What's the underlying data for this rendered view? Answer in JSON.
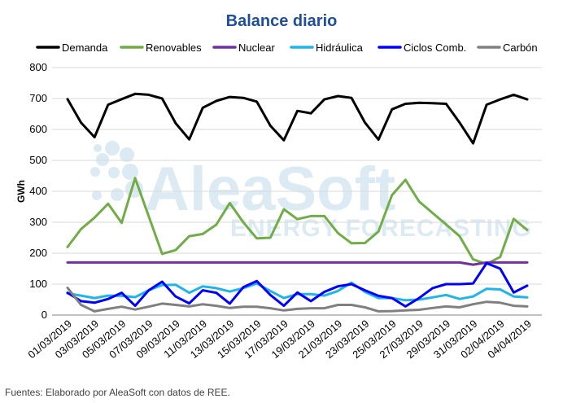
{
  "chart_data": {
    "type": "line",
    "title": "Balance diario",
    "ylabel": "GWh",
    "xlabel": "",
    "ylim": [
      0,
      800
    ],
    "yticks": [
      0,
      100,
      200,
      300,
      400,
      500,
      600,
      700,
      800
    ],
    "grid": true,
    "legend_position": "top",
    "watermark": {
      "brand": "AleaSoft",
      "tagline": "ENERGY FORECASTING"
    },
    "source": "Fuentes: Elaborado por AleaSoft con datos de REE.",
    "x": [
      "01/03/2019",
      "02/03/2019",
      "03/03/2019",
      "04/03/2019",
      "05/03/2019",
      "06/03/2019",
      "07/03/2019",
      "08/03/2019",
      "09/03/2019",
      "10/03/2019",
      "11/03/2019",
      "12/03/2019",
      "13/03/2019",
      "14/03/2019",
      "15/03/2019",
      "16/03/2019",
      "17/03/2019",
      "18/03/2019",
      "19/03/2019",
      "20/03/2019",
      "21/03/2019",
      "22/03/2019",
      "23/03/2019",
      "24/03/2019",
      "25/03/2019",
      "26/03/2019",
      "27/03/2019",
      "28/03/2019",
      "29/03/2019",
      "30/03/2019",
      "31/03/2019",
      "01/04/2019",
      "02/04/2019",
      "03/04/2019",
      "04/04/2019"
    ],
    "x_tick_labels": [
      "01/03/2019",
      "03/03/2019",
      "05/03/2019",
      "07/03/2019",
      "09/03/2019",
      "11/03/2019",
      "13/03/2019",
      "15/03/2019",
      "17/03/2019",
      "19/03/2019",
      "21/03/2019",
      "23/03/2019",
      "25/03/2019",
      "27/03/2019",
      "29/03/2019",
      "31/03/2019",
      "02/04/2019",
      "04/04/2019"
    ],
    "series": [
      {
        "name": "Demanda",
        "color": "#000000",
        "values": [
          698,
          622,
          575,
          680,
          698,
          715,
          712,
          700,
          620,
          568,
          670,
          692,
          705,
          702,
          690,
          612,
          565,
          660,
          652,
          697,
          708,
          702,
          622,
          567,
          665,
          683,
          686,
          685,
          683,
          622,
          555,
          680,
          697,
          712,
          697
        ]
      },
      {
        "name": "Renovables",
        "color": "#70ad47",
        "values": [
          220,
          278,
          315,
          360,
          298,
          443,
          320,
          198,
          210,
          255,
          262,
          292,
          362,
          300,
          248,
          250,
          342,
          310,
          320,
          320,
          265,
          232,
          233,
          270,
          388,
          437,
          367,
          330,
          293,
          255,
          180,
          165,
          188,
          311,
          275
        ]
      },
      {
        "name": "Nuclear",
        "color": "#7030a0",
        "values": [
          170,
          170,
          170,
          170,
          170,
          170,
          170,
          170,
          170,
          170,
          170,
          170,
          170,
          170,
          170,
          170,
          170,
          170,
          170,
          170,
          170,
          170,
          170,
          170,
          170,
          170,
          170,
          170,
          170,
          170,
          163,
          170,
          170,
          170,
          170
        ]
      },
      {
        "name": "Hidráulica",
        "color": "#1fb5e8",
        "values": [
          70,
          63,
          55,
          63,
          62,
          58,
          80,
          97,
          98,
          72,
          93,
          87,
          76,
          87,
          102,
          78,
          55,
          68,
          68,
          63,
          78,
          105,
          75,
          55,
          55,
          48,
          50,
          57,
          65,
          52,
          60,
          85,
          83,
          60,
          57
        ]
      },
      {
        "name": "Ciclos Comb.",
        "color": "#0000ff",
        "values": [
          72,
          45,
          40,
          52,
          72,
          30,
          80,
          108,
          60,
          38,
          80,
          72,
          37,
          90,
          110,
          65,
          30,
          73,
          45,
          75,
          93,
          100,
          80,
          62,
          55,
          28,
          55,
          87,
          100,
          100,
          102,
          168,
          150,
          73,
          95
        ]
      },
      {
        "name": "Carbón",
        "color": "#808080",
        "values": [
          88,
          33,
          12,
          20,
          27,
          18,
          27,
          37,
          33,
          28,
          35,
          30,
          23,
          27,
          27,
          22,
          15,
          20,
          22,
          22,
          33,
          33,
          25,
          12,
          13,
          15,
          17,
          23,
          28,
          25,
          35,
          43,
          40,
          30,
          28
        ]
      }
    ]
  }
}
